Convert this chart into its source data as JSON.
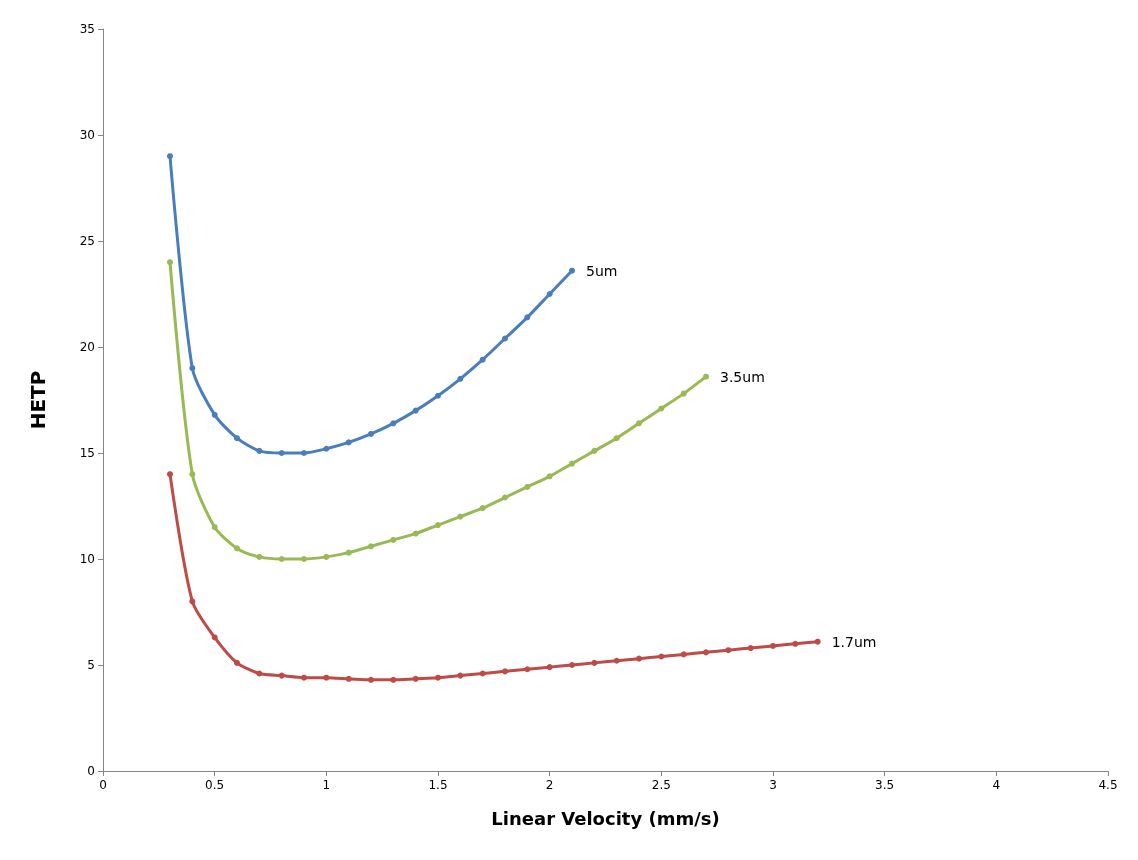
{
  "chart_data": {
    "type": "line",
    "xlabel": "Linear Velocity (mm/s)",
    "ylabel": "HETP",
    "xlim": [
      0,
      4.5
    ],
    "xticks": [
      0,
      0.5,
      1,
      1.5,
      2,
      2.5,
      3,
      3.5,
      4,
      4.5
    ],
    "ylim": [
      0,
      35
    ],
    "yticks": [
      0,
      5,
      10,
      15,
      20,
      25,
      30,
      35
    ],
    "grid": false,
    "legend": false,
    "marker": "circle",
    "line_style": "solid",
    "series": [
      {
        "name": "5um",
        "color": "#4a7ebb",
        "x": [
          0.3,
          0.4,
          0.5,
          0.6,
          0.7,
          0.8,
          0.9,
          1.0,
          1.1,
          1.2,
          1.3,
          1.4,
          1.5,
          1.6,
          1.7,
          1.8,
          1.9,
          2.0,
          2.1
        ],
        "values": [
          29,
          19,
          16.8,
          15.7,
          15.1,
          15.0,
          15.0,
          15.2,
          15.5,
          15.9,
          16.4,
          17.0,
          17.7,
          18.5,
          19.4,
          20.4,
          21.4,
          22.5,
          23.6
        ]
      },
      {
        "name": "3.5um",
        "color": "#98b954",
        "x": [
          0.3,
          0.4,
          0.5,
          0.6,
          0.7,
          0.8,
          0.9,
          1.0,
          1.1,
          1.2,
          1.3,
          1.4,
          1.5,
          1.6,
          1.7,
          1.8,
          1.9,
          2.0,
          2.1,
          2.2,
          2.3,
          2.4,
          2.5,
          2.6,
          2.7
        ],
        "values": [
          24,
          14,
          11.5,
          10.5,
          10.1,
          10.0,
          10.0,
          10.1,
          10.3,
          10.6,
          10.9,
          11.2,
          11.6,
          12.0,
          12.4,
          12.9,
          13.4,
          13.9,
          14.5,
          15.1,
          15.7,
          16.4,
          17.1,
          17.8,
          18.6
        ]
      },
      {
        "name": "1.7um",
        "color": "#be4b48",
        "x": [
          0.3,
          0.4,
          0.5,
          0.6,
          0.7,
          0.8,
          0.9,
          1.0,
          1.1,
          1.2,
          1.3,
          1.4,
          1.5,
          1.6,
          1.7,
          1.8,
          1.9,
          2.0,
          2.1,
          2.2,
          2.3,
          2.4,
          2.5,
          2.6,
          2.7,
          2.8,
          2.9,
          3.0,
          3.1,
          3.2
        ],
        "values": [
          14,
          8,
          6.3,
          5.1,
          4.6,
          4.5,
          4.4,
          4.4,
          4.35,
          4.3,
          4.3,
          4.35,
          4.4,
          4.5,
          4.6,
          4.7,
          4.8,
          4.9,
          5.0,
          5.1,
          5.2,
          5.3,
          5.4,
          5.5,
          5.6,
          5.7,
          5.8,
          5.9,
          6.0,
          6.1
        ]
      }
    ]
  }
}
